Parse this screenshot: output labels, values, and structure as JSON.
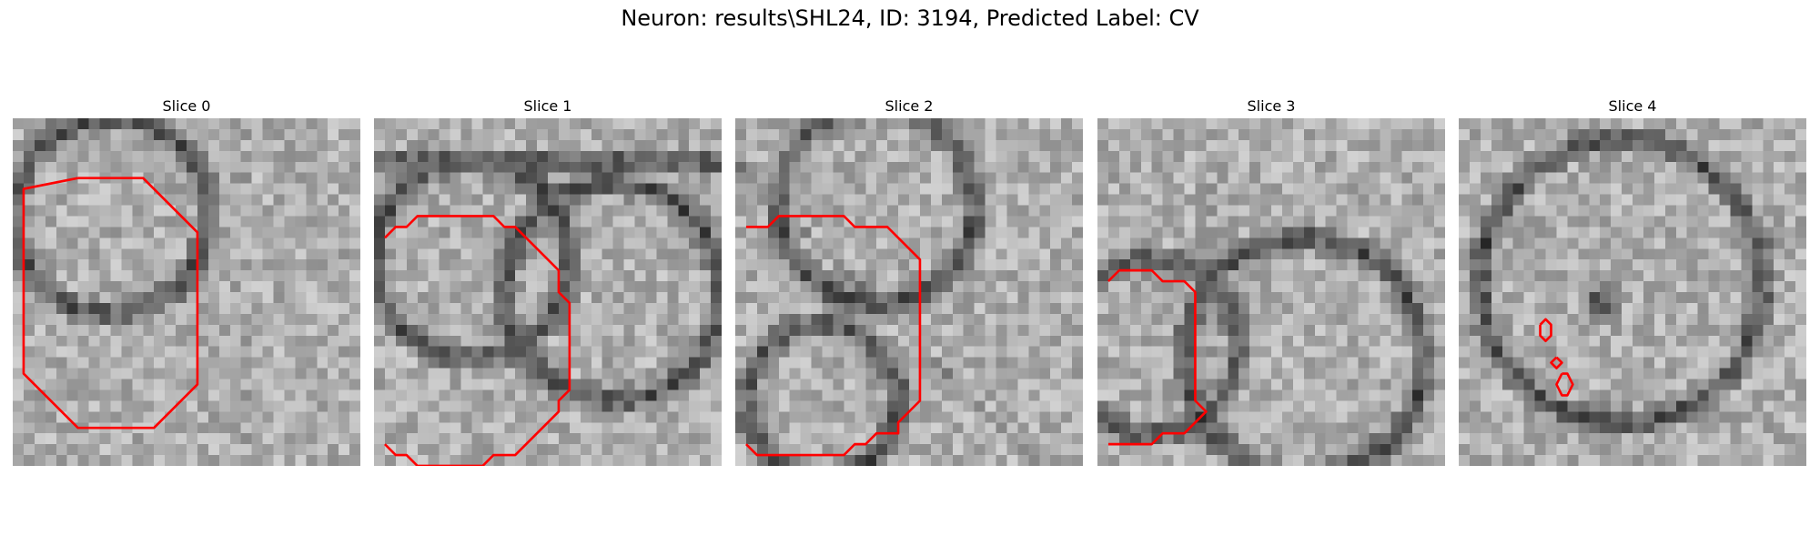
{
  "figure": {
    "title": "Neuron: results\\SHL24, ID: 3194, Predicted Label: CV"
  },
  "colors": {
    "contour": "#ff0000",
    "background": "#ffffff"
  },
  "panels": [
    {
      "title": "Slice 0",
      "contours": [
        [
          [
            5,
            0.5
          ],
          [
            11,
            0.5
          ],
          [
            16,
            5.5
          ],
          [
            16,
            19.5
          ],
          [
            12,
            23.5
          ],
          [
            5,
            23.5
          ],
          [
            0,
            18.5
          ],
          [
            0,
            1.5
          ],
          [
            5,
            0.5
          ]
        ]
      ]
    },
    {
      "title": "Slice 1",
      "contours": [
        [
          [
            0,
            6
          ],
          [
            1,
            5
          ],
          [
            2,
            5
          ],
          [
            3,
            4
          ],
          [
            10,
            4
          ],
          [
            11,
            5
          ],
          [
            12,
            5
          ],
          [
            16,
            9
          ],
          [
            16,
            11
          ],
          [
            17,
            12
          ],
          [
            17,
            20
          ],
          [
            16,
            21
          ],
          [
            16,
            22
          ],
          [
            12,
            26
          ],
          [
            10,
            26
          ],
          [
            9,
            27
          ],
          [
            3,
            27
          ],
          [
            2,
            26
          ],
          [
            1,
            26
          ],
          [
            0,
            25
          ]
        ]
      ]
    },
    {
      "title": "Slice 2",
      "contours": [
        [
          [
            0,
            5
          ],
          [
            2,
            5
          ],
          [
            3,
            4
          ],
          [
            9,
            4
          ],
          [
            10,
            5
          ],
          [
            13,
            5
          ],
          [
            16,
            8
          ],
          [
            16,
            21
          ],
          [
            14,
            23
          ],
          [
            14,
            24
          ],
          [
            12,
            24
          ],
          [
            11,
            25
          ],
          [
            10,
            25
          ],
          [
            9,
            26
          ],
          [
            1,
            26
          ],
          [
            0,
            25
          ]
        ]
      ]
    },
    {
      "title": "Slice 3",
      "contours": [
        [
          [
            0,
            10
          ],
          [
            1,
            9
          ],
          [
            4,
            9
          ],
          [
            5,
            10
          ],
          [
            7,
            10
          ],
          [
            8,
            11
          ],
          [
            8,
            21
          ],
          [
            9,
            22
          ],
          [
            7,
            24
          ],
          [
            5,
            24
          ],
          [
            4,
            25
          ],
          [
            0,
            25
          ]
        ]
      ]
    },
    {
      "title": "Slice 4",
      "contours": [
        [
          [
            6.5,
            14
          ],
          [
            7,
            13.5
          ],
          [
            7.5,
            14
          ],
          [
            7.5,
            15
          ],
          [
            7,
            15.5
          ],
          [
            6.5,
            15
          ],
          [
            6.5,
            14
          ]
        ],
        [
          [
            8,
            17
          ],
          [
            8.5,
            17.5
          ],
          [
            8,
            18
          ],
          [
            7.5,
            17.5
          ],
          [
            8,
            17
          ]
        ],
        [
          [
            8.5,
            18.5
          ],
          [
            9,
            18.5
          ],
          [
            9.5,
            19.5
          ],
          [
            9,
            20.5
          ],
          [
            8.5,
            20.5
          ],
          [
            8,
            19.5
          ],
          [
            8.5,
            18.5
          ]
        ]
      ]
    }
  ]
}
